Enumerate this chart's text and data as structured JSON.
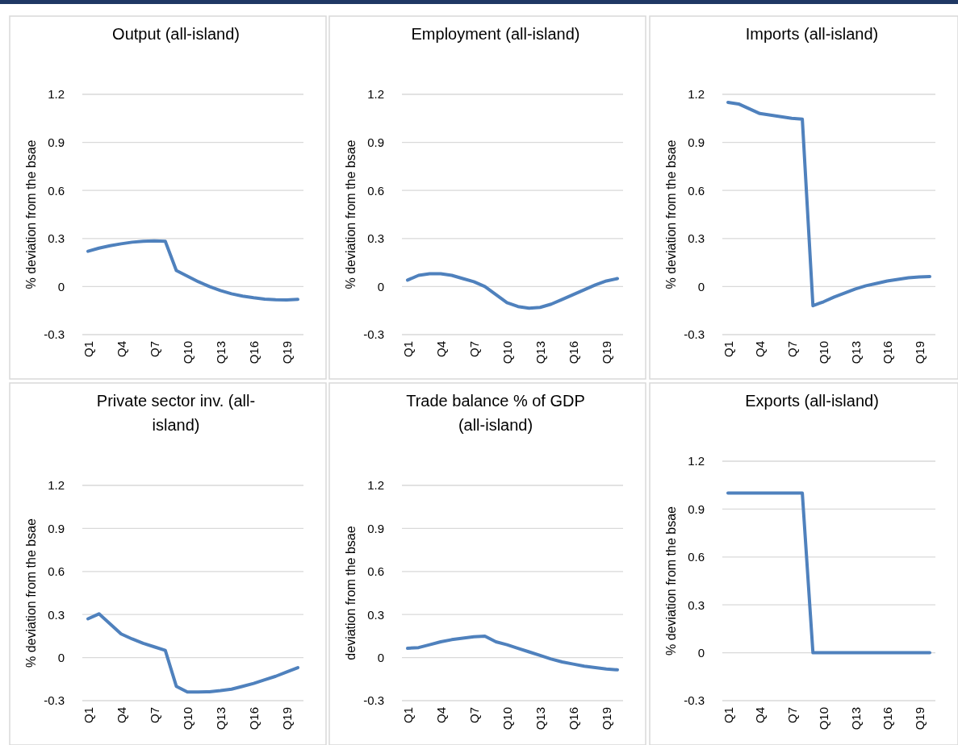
{
  "chart_data": [
    {
      "type": "line",
      "title": "Output (all-island)",
      "ylabel": "% deviation from the bsae",
      "categories": [
        "Q1",
        null,
        null,
        "Q4",
        null,
        null,
        "Q7",
        null,
        null,
        "Q10",
        null,
        null,
        "Q13",
        null,
        null,
        "Q16",
        null,
        null,
        "Q19",
        null
      ],
      "series": [
        {
          "color": "#4f81bd",
          "values": [
            0.22,
            0.24,
            0.255,
            0.267,
            0.277,
            0.283,
            0.285,
            0.283,
            0.1,
            0.065,
            0.03,
            0.0,
            -0.025,
            -0.045,
            -0.06,
            -0.07,
            -0.078,
            -0.082,
            -0.083,
            -0.08
          ]
        }
      ],
      "ylim": [
        -0.3,
        1.2
      ],
      "yticks": [
        -0.3,
        0,
        0.3,
        0.6,
        0.9,
        1.2
      ],
      "grid": "y"
    },
    {
      "type": "line",
      "title": "Employment (all-island)",
      "ylabel": "% deviation from the bsae",
      "categories": [
        "Q1",
        null,
        null,
        "Q4",
        null,
        null,
        "Q7",
        null,
        null,
        "Q10",
        null,
        null,
        "Q13",
        null,
        null,
        "Q16",
        null,
        null,
        "Q19",
        null
      ],
      "series": [
        {
          "color": "#4f81bd",
          "values": [
            0.04,
            0.07,
            0.08,
            0.08,
            0.07,
            0.05,
            0.03,
            0.0,
            -0.05,
            -0.1,
            -0.125,
            -0.135,
            -0.13,
            -0.11,
            -0.08,
            -0.05,
            -0.02,
            0.01,
            0.035,
            0.05
          ]
        }
      ],
      "ylim": [
        -0.3,
        1.2
      ],
      "yticks": [
        -0.3,
        0,
        0.3,
        0.6,
        0.9,
        1.2
      ],
      "grid": "y"
    },
    {
      "type": "line",
      "title": "Imports (all-island)",
      "ylabel": "% deviation from the bsae",
      "categories": [
        "Q1",
        null,
        null,
        "Q4",
        null,
        null,
        "Q7",
        null,
        null,
        "Q10",
        null,
        null,
        "Q13",
        null,
        null,
        "Q16",
        null,
        null,
        "Q19",
        null
      ],
      "series": [
        {
          "color": "#4f81bd",
          "values": [
            1.15,
            1.14,
            1.11,
            1.08,
            1.07,
            1.06,
            1.05,
            1.045,
            -0.12,
            -0.095,
            -0.065,
            -0.04,
            -0.015,
            0.005,
            0.02,
            0.035,
            0.045,
            0.055,
            0.06,
            0.063
          ]
        }
      ],
      "ylim": [
        -0.3,
        1.2
      ],
      "yticks": [
        -0.3,
        0,
        0.3,
        0.6,
        0.9,
        1.2
      ],
      "grid": "y"
    },
    {
      "type": "line",
      "title": "Private sector inv. (all-island)",
      "ylabel": "% deviation from the bsae",
      "categories": [
        "Q1",
        null,
        null,
        "Q4",
        null,
        null,
        "Q7",
        null,
        null,
        "Q10",
        null,
        null,
        "Q13",
        null,
        null,
        "Q16",
        null,
        null,
        "Q19",
        null
      ],
      "series": [
        {
          "color": "#4f81bd",
          "values": [
            0.27,
            0.305,
            0.235,
            0.165,
            0.13,
            0.1,
            0.075,
            0.05,
            -0.2,
            -0.24,
            -0.24,
            -0.238,
            -0.23,
            -0.22,
            -0.2,
            -0.18,
            -0.155,
            -0.13,
            -0.1,
            -0.07
          ]
        }
      ],
      "ylim": [
        -0.3,
        1.2
      ],
      "yticks": [
        -0.3,
        0,
        0.3,
        0.6,
        0.9,
        1.2
      ],
      "grid": "y"
    },
    {
      "type": "line",
      "title": "Trade balance % of GDP (all-island)",
      "ylabel": "deviation from the bsae",
      "categories": [
        "Q1",
        null,
        null,
        "Q4",
        null,
        null,
        "Q7",
        null,
        null,
        "Q10",
        null,
        null,
        "Q13",
        null,
        null,
        "Q16",
        null,
        null,
        "Q19",
        null
      ],
      "series": [
        {
          "color": "#4f81bd",
          "values": [
            0.065,
            0.07,
            0.09,
            0.11,
            0.125,
            0.135,
            0.145,
            0.15,
            0.11,
            0.09,
            0.065,
            0.04,
            0.015,
            -0.01,
            -0.03,
            -0.045,
            -0.06,
            -0.07,
            -0.08,
            -0.085
          ]
        }
      ],
      "ylim": [
        -0.3,
        1.2
      ],
      "yticks": [
        -0.3,
        0,
        0.3,
        0.6,
        0.9,
        1.2
      ],
      "grid": "y"
    },
    {
      "type": "line",
      "title": "Exports (all-island)",
      "ylabel": "% deviation from the bsae",
      "categories": [
        "Q1",
        null,
        null,
        "Q4",
        null,
        null,
        "Q7",
        null,
        null,
        "Q10",
        null,
        null,
        "Q13",
        null,
        null,
        "Q16",
        null,
        null,
        "Q19",
        null
      ],
      "series": [
        {
          "color": "#4f81bd",
          "values": [
            1.0,
            1.0,
            1.0,
            1.0,
            1.0,
            1.0,
            1.0,
            1.0,
            0,
            0,
            0,
            0,
            0,
            0,
            0,
            0,
            0,
            0,
            0,
            0
          ]
        }
      ],
      "ylim": [
        -0.3,
        1.2
      ],
      "yticks": [
        -0.3,
        0,
        0.3,
        0.6,
        0.9,
        1.2
      ],
      "grid": "y"
    }
  ]
}
